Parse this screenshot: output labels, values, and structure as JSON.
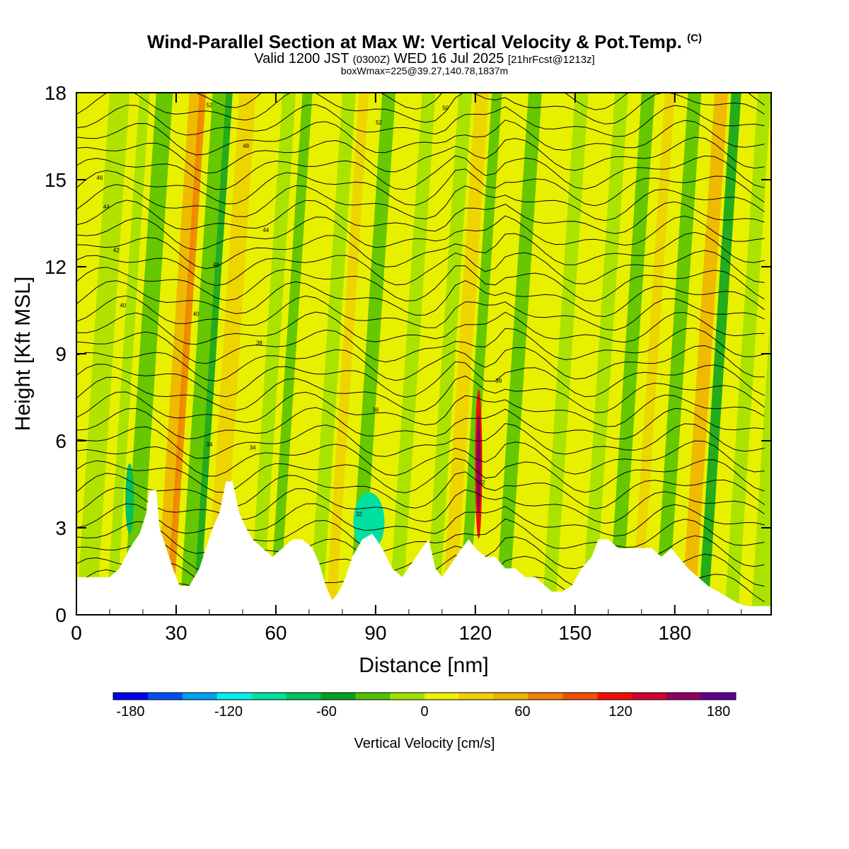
{
  "header": {
    "title_main": "Wind-Parallel Section at Max W: Vertical Velocity & Pot.Temp.",
    "title_mark": "(C)",
    "valid_a": "Valid 1200 JST",
    "valid_b": "(0300Z)",
    "valid_c": "WED 16 Jul 2025",
    "valid_d": "[21hrFcst@1213z]",
    "box_info": "boxWmax=225@39.27,140.78,1837m"
  },
  "chart_data": {
    "type": "heatmap",
    "title": "Wind-Parallel Section at Max W: Vertical Velocity & Pot.Temp.",
    "xlabel": "Distance [nm]",
    "ylabel": "Height [Kft MSL]",
    "xlim": [
      0,
      209
    ],
    "ylim": [
      0,
      18
    ],
    "xticks": [
      0,
      30,
      60,
      90,
      120,
      150,
      180
    ],
    "yticks": [
      0,
      3,
      6,
      9,
      12,
      15,
      18
    ],
    "colorbar": {
      "label": "Vertical Velocity [cm/s]",
      "tick_values": [
        -180,
        -120,
        -60,
        0,
        60,
        120,
        180
      ],
      "colors": [
        "#0000f0",
        "#0050f0",
        "#00a0f0",
        "#00f0f0",
        "#00e0a0",
        "#00c060",
        "#00a020",
        "#50c000",
        "#a0e000",
        "#f0f000",
        "#f0d000",
        "#f0b000",
        "#f08000",
        "#f05000",
        "#f01000",
        "#d00030",
        "#900060",
        "#600090"
      ]
    },
    "terrain_kft": [
      [
        0,
        1.3
      ],
      [
        5,
        1.3
      ],
      [
        10,
        1.3
      ],
      [
        13,
        1.6
      ],
      [
        16,
        2.3
      ],
      [
        19,
        2.8
      ],
      [
        21,
        3.5
      ],
      [
        22,
        4.3
      ],
      [
        24,
        4.3
      ],
      [
        25,
        3.0
      ],
      [
        27,
        2.3
      ],
      [
        29,
        1.6
      ],
      [
        31,
        1.0
      ],
      [
        34,
        1.0
      ],
      [
        37,
        1.6
      ],
      [
        39,
        2.3
      ],
      [
        41,
        3.0
      ],
      [
        43,
        3.5
      ],
      [
        45,
        4.6
      ],
      [
        47,
        4.6
      ],
      [
        49,
        3.5
      ],
      [
        51,
        3.0
      ],
      [
        53,
        2.6
      ],
      [
        56,
        2.3
      ],
      [
        59,
        2.0
      ],
      [
        62,
        2.3
      ],
      [
        65,
        2.6
      ],
      [
        68,
        2.6
      ],
      [
        71,
        2.3
      ],
      [
        73,
        1.8
      ],
      [
        75,
        1.0
      ],
      [
        77,
        0.5
      ],
      [
        79,
        0.8
      ],
      [
        81,
        1.3
      ],
      [
        83,
        2.0
      ],
      [
        86,
        2.6
      ],
      [
        89,
        2.8
      ],
      [
        92,
        2.3
      ],
      [
        95,
        1.6
      ],
      [
        98,
        1.3
      ],
      [
        101,
        1.8
      ],
      [
        104,
        2.3
      ],
      [
        106,
        2.6
      ],
      [
        108,
        1.6
      ],
      [
        110,
        1.3
      ],
      [
        113,
        1.8
      ],
      [
        116,
        2.3
      ],
      [
        118,
        2.6
      ],
      [
        120,
        2.3
      ],
      [
        123,
        2.0
      ],
      [
        126,
        2.0
      ],
      [
        129,
        1.6
      ],
      [
        132,
        1.6
      ],
      [
        135,
        1.3
      ],
      [
        138,
        1.3
      ],
      [
        141,
        1.0
      ],
      [
        143,
        0.8
      ],
      [
        146,
        0.8
      ],
      [
        149,
        1.0
      ],
      [
        152,
        1.6
      ],
      [
        155,
        2.0
      ],
      [
        157,
        2.6
      ],
      [
        160,
        2.6
      ],
      [
        163,
        2.3
      ],
      [
        166,
        2.3
      ],
      [
        170,
        2.3
      ],
      [
        173,
        2.3
      ],
      [
        176,
        2.0
      ],
      [
        179,
        2.3
      ],
      [
        181,
        2.0
      ],
      [
        184,
        1.6
      ],
      [
        187,
        1.3
      ],
      [
        190,
        1.0
      ],
      [
        193,
        0.8
      ],
      [
        196,
        0.6
      ],
      [
        199,
        0.4
      ],
      [
        202,
        0.3
      ],
      [
        206,
        0.3
      ],
      [
        209,
        0.3
      ]
    ],
    "theta_contours_labeled": [
      32,
      34,
      36,
      38,
      40,
      42,
      44,
      46,
      48,
      50,
      52
    ],
    "max_updraft": {
      "x_nm": 121,
      "value_cm_s": 225
    }
  }
}
